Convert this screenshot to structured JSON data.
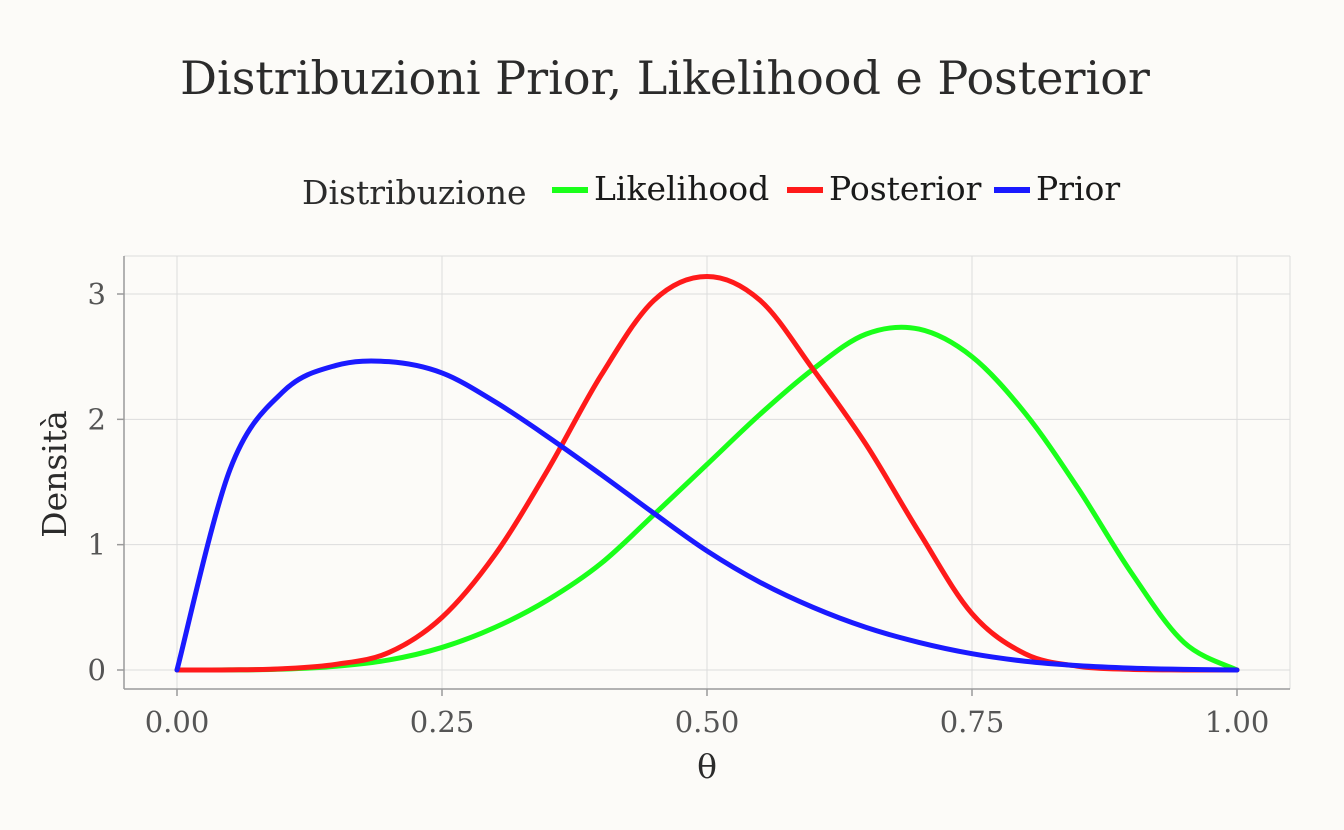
{
  "chart_data": {
    "type": "line",
    "title": "Distribuzioni Prior, Likelihood e Posterior",
    "xlabel": "θ",
    "ylabel": "Densità",
    "xlim": [
      0,
      1
    ],
    "ylim": [
      -0.15,
      3.3
    ],
    "x_ticks": [
      0,
      0.25,
      0.5,
      0.75,
      1
    ],
    "x_tick_labels": [
      "0.00",
      "0.25",
      "0.50",
      "0.75",
      "1.00"
    ],
    "y_ticks": [
      0,
      1,
      2,
      3
    ],
    "y_tick_labels": [
      "0",
      "1",
      "2",
      "3"
    ],
    "grid": true,
    "legend": {
      "title": "Distribuzione",
      "position": "top",
      "entries": [
        "Likelihood",
        "Posterior",
        "Prior"
      ]
    },
    "x": [
      0,
      0.05,
      0.1,
      0.15,
      0.2,
      0.25,
      0.3,
      0.35,
      0.4,
      0.45,
      0.5,
      0.55,
      0.6,
      0.65,
      0.7,
      0.75,
      0.8,
      0.85,
      0.9,
      0.95,
      1
    ],
    "series": [
      {
        "name": "Likelihood",
        "color": "#1aff1a",
        "values": [
          0,
          0.0006,
          0.007,
          0.03,
          0.08,
          0.18,
          0.34,
          0.56,
          0.85,
          1.24,
          1.64,
          2.04,
          2.4,
          2.68,
          2.72,
          2.5,
          2.05,
          1.45,
          0.78,
          0.22,
          0
        ]
      },
      {
        "name": "Posterior",
        "color": "#ff1a1a",
        "values": [
          0,
          0.0008,
          0.01,
          0.045,
          0.14,
          0.42,
          0.92,
          1.6,
          2.35,
          2.95,
          3.14,
          2.95,
          2.4,
          1.8,
          1.1,
          0.45,
          0.13,
          0.03,
          0.005,
          0.0005,
          0
        ]
      },
      {
        "name": "Prior",
        "color": "#1a1aff",
        "values": [
          0,
          1.6,
          2.22,
          2.43,
          2.46,
          2.37,
          2.14,
          1.86,
          1.56,
          1.25,
          0.95,
          0.7,
          0.5,
          0.34,
          0.22,
          0.13,
          0.07,
          0.035,
          0.015,
          0.005,
          0
        ]
      }
    ]
  }
}
